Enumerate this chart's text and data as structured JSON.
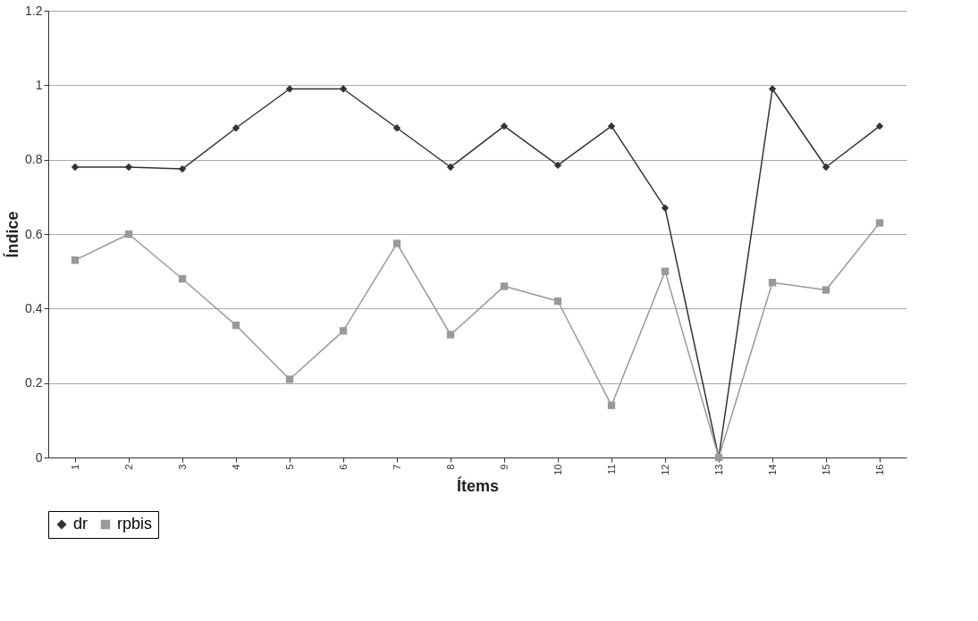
{
  "chart_data": {
    "type": "line",
    "xlabel": "Ítems",
    "ylabel": "Índice",
    "categories": [
      "1",
      "2",
      "3",
      "4",
      "5",
      "6",
      "7",
      "8",
      "9",
      "10",
      "11",
      "12",
      "13",
      "14",
      "15",
      "16"
    ],
    "series": [
      {
        "name": "dr",
        "color": "#333333",
        "marker": "diamond",
        "values": [
          0.78,
          0.78,
          0.775,
          0.885,
          0.99,
          0.99,
          0.885,
          0.78,
          0.89,
          0.785,
          0.89,
          0.67,
          0,
          0.99,
          0.78,
          0.89
        ]
      },
      {
        "name": "rpbis",
        "color": "#999999",
        "marker": "square",
        "values": [
          0.53,
          0.6,
          0.48,
          0.355,
          0.21,
          0.34,
          0.575,
          0.33,
          0.46,
          0.42,
          0.14,
          0.5,
          0,
          0.47,
          0.45,
          0.63
        ]
      }
    ],
    "ylim": [
      0,
      1.2
    ],
    "yticks": [
      0,
      0.2,
      0.4,
      0.6,
      0.8,
      1,
      1.2
    ],
    "grid": "y",
    "legend": "bottom",
    "line_style": "solid"
  }
}
